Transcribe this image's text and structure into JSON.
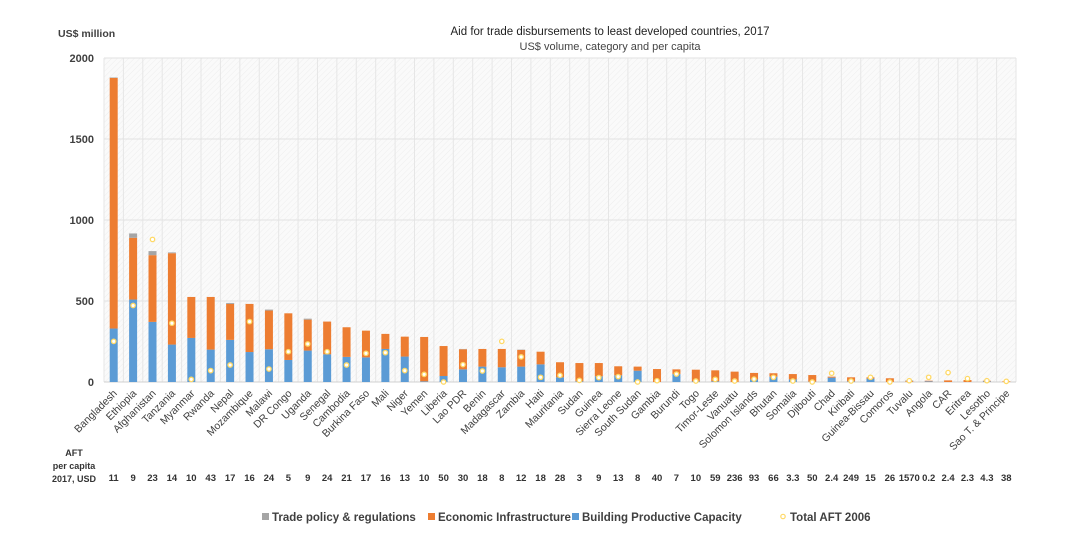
{
  "chart_data": {
    "type": "bar",
    "stacked": true,
    "title": "Aid for trade disbursements to least developed countries, 2017",
    "subtitle": "US$ volume, category and per capita",
    "ylabel": "US$ million",
    "ylim": [
      0,
      2000
    ],
    "yticks": [
      0,
      500,
      1000,
      1500,
      2000
    ],
    "grid": true,
    "legend_placement": "bottom",
    "categories": [
      "Bangladesh",
      "Ethiopia",
      "Afghanistan",
      "Tanzania",
      "Myanmar",
      "Rwanda",
      "Nepal",
      "Mozambique",
      "Malawi",
      "DR Congo",
      "Uganda",
      "Senegal",
      "Cambodia",
      "Burkina Faso",
      "Mali",
      "Niger",
      "Yemen",
      "Liberia",
      "Lao PDR",
      "Benin",
      "Madagascar",
      "Zambia",
      "Haiti",
      "Mauritania",
      "Sudan",
      "Guinea",
      "Sierra Leone",
      "South Sudan",
      "Gambia",
      "Burundi",
      "Togo",
      "Timor-Leste",
      "Vanuatu",
      "Solomon Islands",
      "Bhutan",
      "Somalia",
      "Djibouti",
      "Chad",
      "Kiribati",
      "Guinea-Bissau",
      "Comoros",
      "Tuvalu",
      "Angola",
      "CAR",
      "Eritrea",
      "Lesotho",
      "Sao T. & Principe"
    ],
    "series": [
      {
        "name": "Building Productive Capacity",
        "color": "#5b9bd5",
        "kind": "bar",
        "values": [
          330,
          509,
          371,
          231,
          272,
          200,
          260,
          185,
          202,
          136,
          194,
          171,
          155,
          152,
          204,
          157,
          4,
          37,
          78,
          95,
          91,
          95,
          109,
          29,
          4,
          35,
          41,
          70,
          0,
          49,
          4,
          4,
          0,
          16,
          33,
          16,
          2,
          27,
          4,
          21,
          0,
          0,
          4,
          0,
          0,
          4,
          0
        ]
      },
      {
        "name": "Economic Infrastructure",
        "color": "#ed7d31",
        "kind": "bar",
        "values": [
          1547,
          381,
          412,
          564,
          253,
          325,
          222,
          297,
          239,
          288,
          191,
          202,
          183,
          165,
          93,
          123,
          274,
          185,
          124,
          109,
          113,
          103,
          78,
          93,
          113,
          82,
          56,
          25,
          80,
          29,
          72,
          68,
          64,
          40,
          21,
          33,
          41,
          6,
          25,
          8,
          23,
          5,
          4,
          10,
          12,
          4,
          4
        ]
      },
      {
        "name": "Trade policy & regulations",
        "color": "#a5a5a5",
        "kind": "bar",
        "values": [
          3,
          27,
          25,
          5,
          0,
          0,
          6,
          0,
          6,
          0,
          6,
          0,
          0,
          0,
          0,
          0,
          0,
          0,
          2,
          0,
          0,
          2,
          0,
          0,
          0,
          0,
          0,
          0,
          0,
          0,
          0,
          0,
          0,
          0,
          0,
          0,
          0,
          0,
          0,
          0,
          0,
          5,
          0,
          0,
          0,
          0,
          0
        ]
      },
      {
        "name": "Total AFT 2006",
        "color": "#ffd966",
        "kind": "marker",
        "values": [
          251,
          472,
          880,
          363,
          16,
          70,
          105,
          373,
          80,
          187,
          235,
          187,
          105,
          177,
          181,
          70,
          47,
          0,
          107,
          68,
          251,
          155,
          29,
          41,
          10,
          27,
          33,
          0,
          8,
          49,
          6,
          16,
          6,
          18,
          29,
          6,
          0,
          54,
          6,
          29,
          0,
          8,
          29,
          58,
          21,
          8,
          4
        ]
      }
    ],
    "per_capita": {
      "label_lines": [
        "AFT",
        "per capita",
        "2017, USD"
      ],
      "values": [
        "11",
        "9",
        "23",
        "14",
        "10",
        "43",
        "17",
        "16",
        "24",
        "5",
        "9",
        "24",
        "21",
        "17",
        "16",
        "13",
        "10",
        "50",
        "30",
        "18",
        "8",
        "12",
        "18",
        "28",
        "3",
        "9",
        "13",
        "8",
        "40",
        "7",
        "10",
        "59",
        "236",
        "93",
        "66",
        "3.3",
        "50",
        "2.4",
        "249",
        "15",
        "26",
        "1570",
        "0.2",
        "2.4",
        "2.3",
        "4.3",
        "38"
      ]
    },
    "legend": [
      "Trade policy & regulations",
      "Economic Infrastructure",
      "Building Productive Capacity",
      "Total AFT 2006"
    ]
  }
}
